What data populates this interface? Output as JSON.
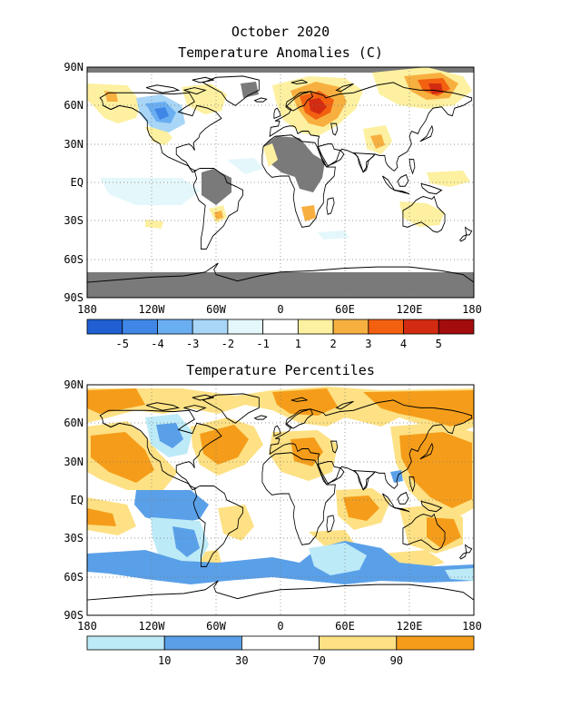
{
  "page_title": "October 2020",
  "panels": [
    {
      "id": "anomalies",
      "title": "Temperature Anomalies (C)",
      "lat_labels": [
        "90N",
        "60N",
        "30N",
        "EQ",
        "30S",
        "60S",
        "90S"
      ],
      "lon_labels": [
        "180",
        "120W",
        "60W",
        "0",
        "60E",
        "120E",
        "180"
      ],
      "legend": {
        "colors": [
          "#1f5fd1",
          "#3f86e6",
          "#6aaef2",
          "#a9d6f7",
          "#e4f7fb",
          "#ffffff",
          "#fdf0a0",
          "#f7b040",
          "#f26010",
          "#d32b12",
          "#a30c0c"
        ],
        "labels": [
          "-5",
          "-4",
          "-3",
          "-2",
          "-1",
          "1",
          "2",
          "3",
          "4",
          "5"
        ],
        "no_data_color": "#7a7a7a"
      }
    },
    {
      "id": "percentiles",
      "title": "Temperature Percentiles",
      "lat_labels": [
        "90N",
        "60N",
        "30N",
        "EQ",
        "30S",
        "60S",
        "90S"
      ],
      "lon_labels": [
        "180",
        "120W",
        "60W",
        "0",
        "60E",
        "120E",
        "180"
      ],
      "legend": {
        "colors": [
          "#bdeaf7",
          "#5aa0e8",
          "#ffffff",
          "#fde184",
          "#f59d1a"
        ],
        "labels": [
          "10",
          "30",
          "70",
          "90"
        ]
      }
    }
  ]
}
